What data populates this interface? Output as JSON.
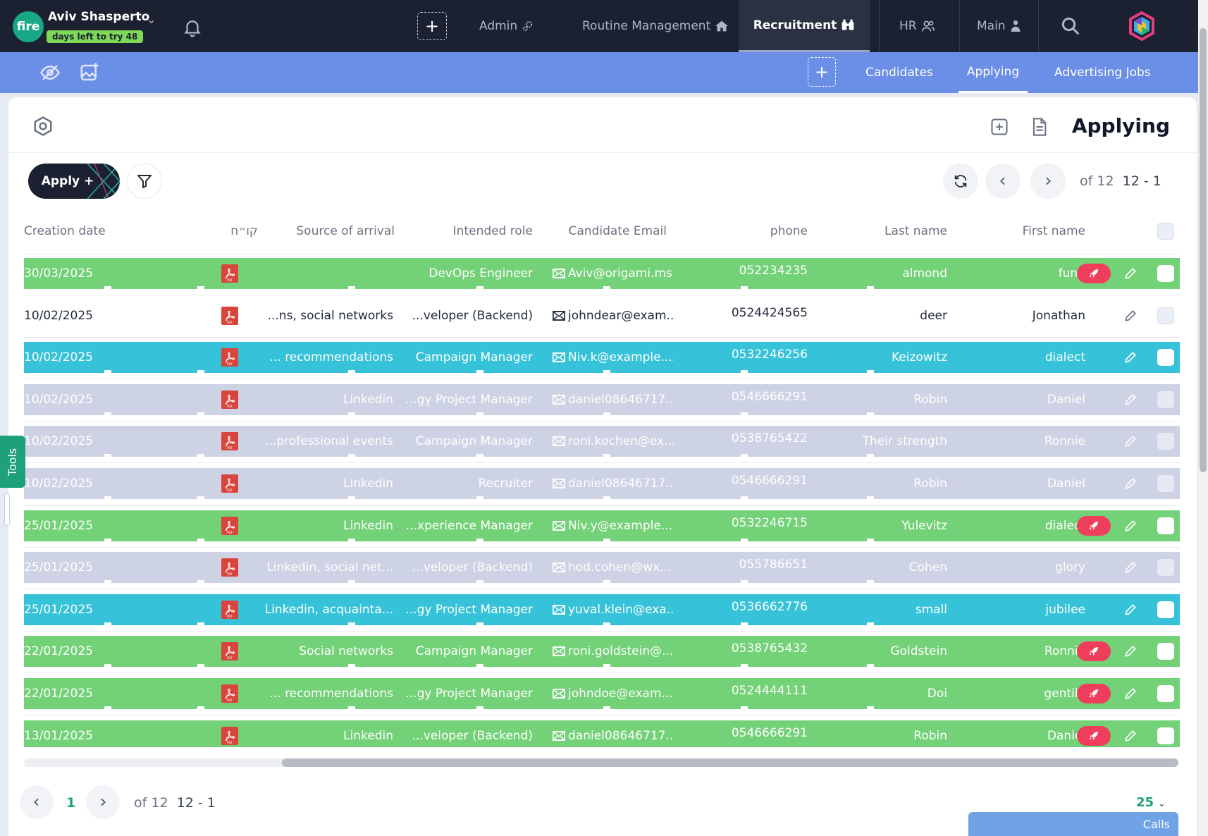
{
  "topbar": {
    "brand": "fire",
    "user_name": "Aviv Shasperto",
    "trial": "days left to try 48",
    "nav": [
      {
        "label": "Admin",
        "icon": "gears-icon"
      },
      {
        "label": "Routine Management",
        "icon": "home-icon"
      },
      {
        "label": "Recruitment",
        "icon": "binoculars-icon",
        "active": true
      },
      {
        "label": "HR",
        "icon": "people-icon"
      },
      {
        "label": "Main",
        "icon": "person-icon"
      }
    ]
  },
  "subbar": {
    "tabs": [
      "Candidates",
      "Applying",
      "Advertising Jobs"
    ],
    "active_tab": "Applying"
  },
  "header": {
    "title": "Applying",
    "apply_button": "Apply +"
  },
  "pager": {
    "of": "of",
    "total": "12",
    "range": "12 - 1",
    "current_page": "1",
    "page_size": "25"
  },
  "table": {
    "columns": [
      "Creation date",
      "קו״ח",
      "Source of arrival",
      "Intended role",
      "Candidate Email",
      "phone",
      "Last name",
      "First name"
    ],
    "rows": [
      {
        "date": "30/03/2025",
        "source": "",
        "role": "DevOps Engineer",
        "email": "Aviv@origami.ms",
        "phone": "052234235",
        "last": "almond",
        "first": "fund",
        "status": "green",
        "rocket": true
      },
      {
        "date": "10/02/2025",
        "source": "...ns, social networks",
        "role": "...veloper (Backend)",
        "email": "johndear@exam...",
        "phone": "0524424565",
        "last": "deer",
        "first": "Jonathan",
        "status": "white",
        "rocket": false
      },
      {
        "date": "10/02/2025",
        "source": "... recommendations",
        "role": "Campaign Manager",
        "email": "Niv.k@example....",
        "phone": "0532246256",
        "last": "Keizowitz",
        "first": "dialect",
        "status": "cyan",
        "rocket": false
      },
      {
        "date": "10/02/2025",
        "source": "Linkedin",
        "role": "...gy Project Manager",
        "email": "daniel08646717...",
        "phone": "0546666291",
        "last": "Robin",
        "first": "Daniel",
        "status": "gray",
        "rocket": false
      },
      {
        "date": "10/02/2025",
        "source": "...professional events",
        "role": "Campaign Manager",
        "email": "roni.kochen@ex...",
        "phone": "0538765422",
        "last": "Their strength",
        "first": "Ronnie",
        "status": "gray",
        "rocket": false
      },
      {
        "date": "10/02/2025",
        "source": "Linkedin",
        "role": "Recruiter",
        "email": "daniel08646717...",
        "phone": "0546666291",
        "last": "Robin",
        "first": "Daniel",
        "status": "gray",
        "rocket": false
      },
      {
        "date": "25/01/2025",
        "source": "Linkedin",
        "role": "...xperience Manager",
        "email": "Niv.y@example....",
        "phone": "0532246715",
        "last": "Yulevitz",
        "first": "dialect",
        "status": "green",
        "rocket": true
      },
      {
        "date": "25/01/2025",
        "source": "Linkedin, social net...",
        "role": "...veloper (Backend)",
        "email": "hod.cohen@wx...",
        "phone": "055786651",
        "last": "Cohen",
        "first": "glory",
        "status": "gray",
        "rocket": false
      },
      {
        "date": "25/01/2025",
        "source": "Linkedin, acquainta...",
        "role": "...gy Project Manager",
        "email": "yuval.klein@exa...",
        "phone": "0536662776",
        "last": "small",
        "first": "jubilee",
        "status": "cyan",
        "rocket": false
      },
      {
        "date": "22/01/2025",
        "source": "Social networks",
        "role": "Campaign Manager",
        "email": "roni.goldstein@...",
        "phone": "0538765432",
        "last": "Goldstein",
        "first": "Ronnie",
        "status": "green",
        "rocket": true
      },
      {
        "date": "22/01/2025",
        "source": "... recommendations",
        "role": "...gy Project Manager",
        "email": "johndoe@exam...",
        "phone": "0524444111",
        "last": "Doi",
        "first": "gentile",
        "status": "green",
        "rocket": true
      },
      {
        "date": "13/01/2025",
        "source": "Linkedin",
        "role": "...veloper (Backend)",
        "email": "daniel08646717...",
        "phone": "0546666291",
        "last": "Robin",
        "first": "Daniel",
        "status": "green",
        "rocket": true
      }
    ]
  },
  "footer": {
    "calls": "Calls",
    "tools": "Tools"
  },
  "colors": {
    "green": "#73d177",
    "cyan": "#36c2d8",
    "gray": "#cdd2e4",
    "white": "#ffffff",
    "topbar": "#1b2130",
    "subbar": "#6b8ee6",
    "accent": "#1ea07a",
    "rocket": "#ef3e5c"
  }
}
